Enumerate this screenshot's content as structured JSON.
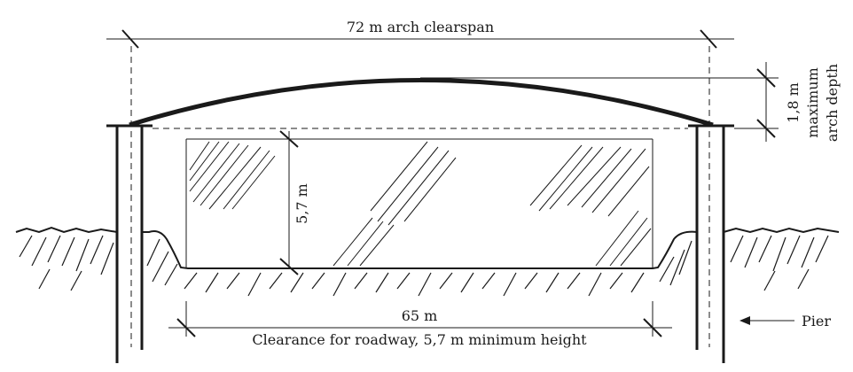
{
  "labels": {
    "clearspan": "72 m arch clearspan",
    "depth_value": "1,8 m",
    "depth_line1": "maximum",
    "depth_line2": "arch depth",
    "height": "5,7 m",
    "roadway_width": "65 m",
    "clearance": "Clearance for roadway, 5,7 m minimum height",
    "pier": "Pier"
  }
}
